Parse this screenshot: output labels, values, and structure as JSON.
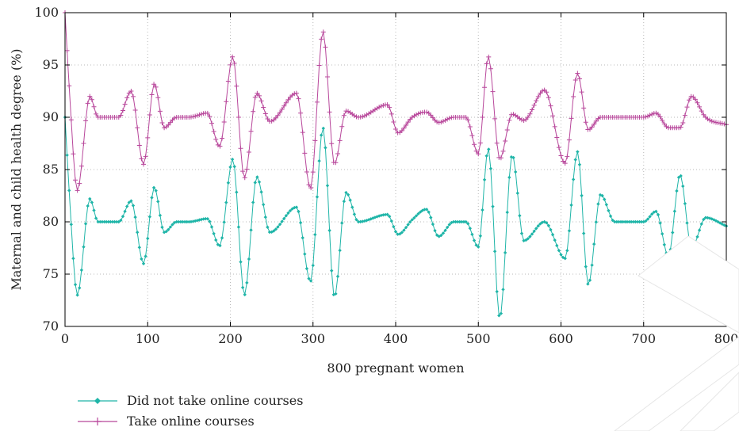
{
  "chart_data": {
    "type": "line",
    "title": "",
    "xlabel": "800 pregnant women",
    "ylabel": "Maternal and child health degree (%)",
    "xlim": [
      0,
      800
    ],
    "ylim": [
      70,
      100
    ],
    "x_ticks": [
      "0",
      "100",
      "200",
      "300",
      "400",
      "500",
      "600",
      "700",
      "800"
    ],
    "y_ticks": [
      "70",
      "75",
      "80",
      "85",
      "90",
      "95",
      "100"
    ],
    "grid": true,
    "legend_position": "bottom-left",
    "series": [
      {
        "name": "Did not take online courses",
        "color": "#1fb5a8",
        "marker": "diamond",
        "baseline": 80,
        "x": [
          0,
          5,
          15,
          30,
          40,
          65,
          80,
          95,
          108,
          120,
          135,
          150,
          172,
          187,
          203,
          217,
          232,
          248,
          280,
          297,
          312,
          326,
          340,
          355,
          390,
          403,
          420,
          437,
          452,
          470,
          485,
          500,
          512,
          526,
          541,
          555,
          580,
          605,
          620,
          633,
          648,
          665,
          700,
          715,
          730,
          744,
          758,
          775,
          800
        ],
        "y": [
          90,
          83,
          73,
          82.2,
          80,
          80,
          82,
          76,
          83.3,
          79,
          80,
          80,
          80.3,
          77.7,
          86,
          73,
          84.3,
          79,
          81.4,
          74.3,
          89,
          72.8,
          82.8,
          80,
          80.7,
          78.8,
          80.2,
          81.2,
          78.6,
          80,
          80,
          77.6,
          87,
          70.8,
          86.4,
          78.2,
          80,
          76.5,
          86.7,
          74,
          82.6,
          80,
          80,
          81,
          76.7,
          84.5,
          77.5,
          80.4,
          79.6
        ]
      },
      {
        "name": "Take online courses",
        "color": "#b8479b",
        "marker": "plus",
        "baseline": 90,
        "x": [
          0,
          5,
          15,
          30,
          40,
          65,
          80,
          95,
          108,
          120,
          135,
          150,
          172,
          187,
          203,
          217,
          232,
          248,
          280,
          297,
          312,
          326,
          340,
          355,
          390,
          403,
          420,
          437,
          452,
          470,
          485,
          500,
          512,
          526,
          541,
          555,
          580,
          605,
          620,
          633,
          648,
          665,
          700,
          715,
          730,
          744,
          758,
          775,
          800
        ],
        "y": [
          100,
          93,
          83,
          92,
          90,
          90,
          92.5,
          85.5,
          93.2,
          89,
          90,
          90,
          90.4,
          87.2,
          95.8,
          84.2,
          92.3,
          89.6,
          92.3,
          83.2,
          98.2,
          85.5,
          90.6,
          90,
          91.2,
          88.5,
          90,
          90.5,
          89.5,
          90,
          90,
          86.5,
          95.8,
          86,
          90.3,
          89.7,
          92.6,
          85.6,
          94.2,
          88.8,
          90,
          90,
          90,
          90.4,
          89,
          89,
          92,
          90,
          89.3
        ]
      }
    ]
  }
}
